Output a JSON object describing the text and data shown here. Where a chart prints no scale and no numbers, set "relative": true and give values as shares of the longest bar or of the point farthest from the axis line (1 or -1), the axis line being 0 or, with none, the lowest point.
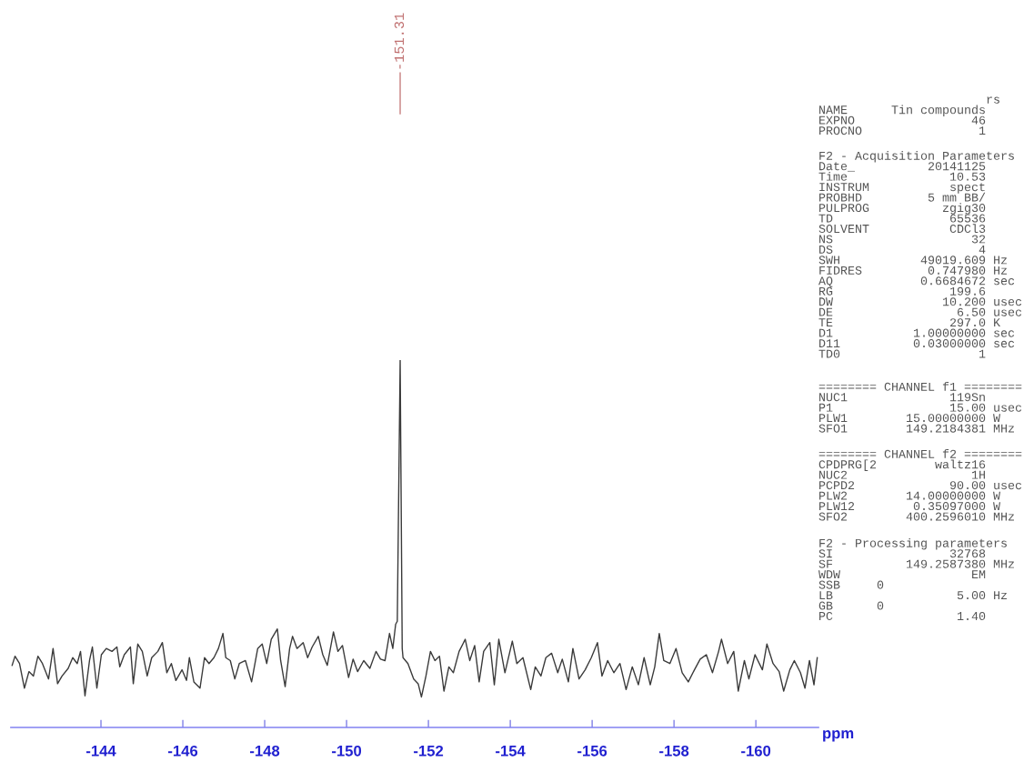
{
  "chart_data": {
    "type": "line",
    "relative": true,
    "xlabel": "ppm",
    "xlim": [
      -141.8,
      -161.53
    ],
    "xticks": [
      -144,
      -146,
      -148,
      -150,
      -152,
      -154,
      -156,
      -158,
      -160
    ],
    "grid": false,
    "legend": false,
    "marker": "none",
    "line_style": "solid",
    "x": [
      -141.83,
      -141.9,
      -142.01,
      -142.13,
      -142.24,
      -142.35,
      -142.46,
      -142.57,
      -142.72,
      -142.83,
      -142.94,
      -143.05,
      -143.2,
      -143.31,
      -143.42,
      -143.5,
      -143.61,
      -143.72,
      -143.79,
      -143.9,
      -144.01,
      -144.13,
      -144.27,
      -144.39,
      -144.46,
      -144.57,
      -144.72,
      -144.79,
      -144.9,
      -145.01,
      -145.13,
      -145.24,
      -145.39,
      -145.5,
      -145.61,
      -145.72,
      -145.83,
      -145.98,
      -146.09,
      -146.16,
      -146.27,
      -146.42,
      -146.53,
      -146.64,
      -146.76,
      -146.87,
      -146.98,
      -147.05,
      -147.16,
      -147.27,
      -147.38,
      -147.53,
      -147.68,
      -147.83,
      -147.94,
      -148.05,
      -148.16,
      -148.31,
      -148.39,
      -148.5,
      -148.61,
      -148.68,
      -148.79,
      -148.94,
      -149.05,
      -149.16,
      -149.31,
      -149.42,
      -149.53,
      -149.68,
      -149.79,
      -149.9,
      -150.05,
      -150.16,
      -150.27,
      -150.42,
      -150.57,
      -150.72,
      -150.83,
      -150.94,
      -151.05,
      -151.13,
      -151.2,
      -151.24,
      -151.31,
      -151.36,
      -151.38,
      -151.5,
      -151.64,
      -151.75,
      -151.83,
      -151.94,
      -152.05,
      -152.16,
      -152.27,
      -152.38,
      -152.5,
      -152.61,
      -152.75,
      -152.9,
      -153.01,
      -153.13,
      -153.24,
      -153.35,
      -153.5,
      -153.61,
      -153.72,
      -153.87,
      -154.05,
      -154.16,
      -154.31,
      -154.5,
      -154.61,
      -154.75,
      -154.87,
      -155.01,
      -155.16,
      -155.27,
      -155.42,
      -155.53,
      -155.68,
      -155.83,
      -155.98,
      -156.13,
      -156.24,
      -156.38,
      -156.53,
      -156.68,
      -156.83,
      -156.98,
      -157.13,
      -157.27,
      -157.42,
      -157.53,
      -157.64,
      -157.75,
      -157.9,
      -158.05,
      -158.2,
      -158.35,
      -158.5,
      -158.64,
      -158.79,
      -158.94,
      -159.09,
      -159.16,
      -159.31,
      -159.46,
      -159.57,
      -159.72,
      -159.83,
      -159.98,
      -160.16,
      -160.27,
      -160.42,
      -160.57,
      -160.68,
      -160.83,
      -160.94,
      -161.09,
      -161.2,
      -161.31,
      -161.42,
      -161.5
    ],
    "series": [
      {
        "color": "#3a3a3a",
        "values": [
          0.169,
          0.194,
          0.174,
          0.107,
          0.152,
          0.14,
          0.194,
          0.174,
          0.132,
          0.215,
          0.119,
          0.14,
          0.161,
          0.19,
          0.174,
          0.207,
          0.086,
          0.182,
          0.219,
          0.107,
          0.198,
          0.215,
          0.207,
          0.219,
          0.165,
          0.198,
          0.219,
          0.119,
          0.227,
          0.207,
          0.14,
          0.19,
          0.207,
          0.231,
          0.149,
          0.174,
          0.128,
          0.157,
          0.128,
          0.19,
          0.124,
          0.107,
          0.19,
          0.174,
          0.19,
          0.215,
          0.256,
          0.19,
          0.182,
          0.132,
          0.174,
          0.182,
          0.124,
          0.215,
          0.227,
          0.174,
          0.24,
          0.268,
          0.182,
          0.111,
          0.215,
          0.248,
          0.215,
          0.231,
          0.19,
          0.219,
          0.248,
          0.198,
          0.169,
          0.26,
          0.207,
          0.223,
          0.136,
          0.186,
          0.152,
          0.182,
          0.161,
          0.207,
          0.186,
          0.182,
          0.256,
          0.215,
          0.281,
          0.289,
          1.0,
          0.215,
          0.19,
          0.174,
          0.132,
          0.119,
          0.083,
          0.14,
          0.207,
          0.182,
          0.194,
          0.099,
          0.165,
          0.149,
          0.207,
          0.24,
          0.182,
          0.223,
          0.124,
          0.207,
          0.231,
          0.116,
          0.24,
          0.149,
          0.235,
          0.174,
          0.19,
          0.103,
          0.165,
          0.14,
          0.19,
          0.202,
          0.149,
          0.186,
          0.124,
          0.215,
          0.132,
          0.157,
          0.19,
          0.231,
          0.14,
          0.182,
          0.149,
          0.174,
          0.103,
          0.165,
          0.116,
          0.19,
          0.116,
          0.165,
          0.256,
          0.182,
          0.174,
          0.215,
          0.149,
          0.124,
          0.157,
          0.186,
          0.198,
          0.149,
          0.207,
          0.24,
          0.174,
          0.207,
          0.099,
          0.182,
          0.132,
          0.198,
          0.157,
          0.227,
          0.174,
          0.152,
          0.099,
          0.157,
          0.182,
          0.149,
          0.107,
          0.182,
          0.116,
          0.19
        ]
      }
    ],
    "annotations": [
      {
        "text": "-151.31",
        "x": -151.31
      },
      "                       rs\nNAME      Tin compounds\nEXPNO                46\nPROCNO                1",
      "F2 - Acquisition Parameters\nDate_          20141125\nTime              10.53\nINSTRUM           spect\nPROBHD         5 mm BB/\nPULPROG          zgig30\nTD                65536\nSOLVENT           CDCl3\nNS                   32\nDS                    4\nSWH           49019.609 Hz\nFIDRES         0.747980 Hz\nAQ            0.6684672 sec\nRG                199.6\nDW               10.200 usec\nDE                 6.50 usec\nTE                297.0 K\nD1           1.00000000 sec\nD11          0.03000000 sec\nTD0                   1",
      "======== CHANNEL f1 ========\nNUC1              119Sn\nP1                15.00 usec\nPLW1        15.00000000 W\nSFO1        149.2184381 MHz",
      "======== CHANNEL f2 ========\nCPDPRG[2        waltz16\nNUC2                 1H\nPCPD2             90.00 usec\nPLW2        14.00000000 W\nPLW12        0.35097000 W\nSFO2        400.2596010 MHz",
      "F2 - Processing parameters\nSI                32768\nSF          149.2587380 MHz\nWDW                  EM\nSSB     0\nLB                 5.00 Hz\nGB      0\nPC                 1.40"
    ]
  }
}
